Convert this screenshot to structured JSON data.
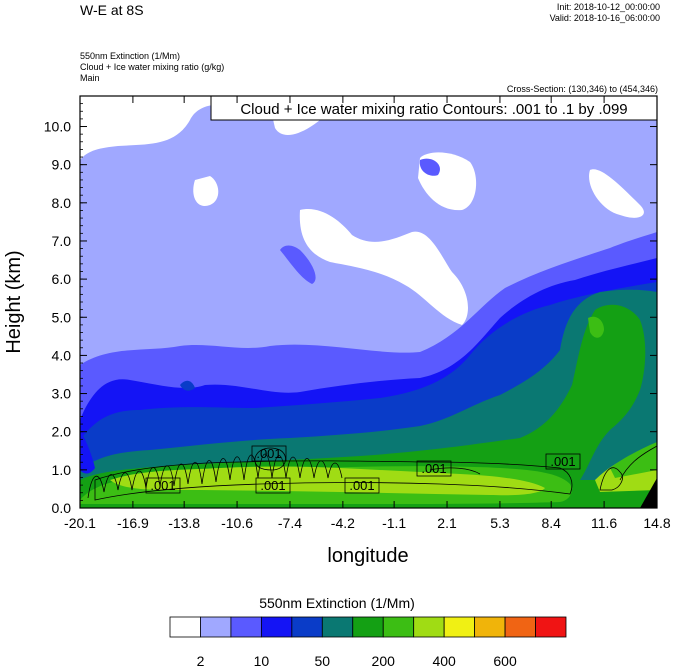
{
  "header": {
    "title": "W-E at 8S",
    "init": "Init: 2018-10-12_00:00:00",
    "valid": "Valid: 2018-10-16_06:00:00",
    "variable_1": "550nm Extinction   (1/Mm)",
    "variable_2": "Cloud + Ice water mixing ratio   (g/kg)",
    "variable_3": "Main",
    "cross_section": "Cross-Section: (130,346) to (454,346)",
    "contour_note": "Cloud + Ice water mixing ratio Contours: .001 to .1 by .099"
  },
  "chart_data": {
    "type": "heatmap",
    "title": "W-E at 8S",
    "xlabel": "longitude",
    "ylabel": "Height (km)",
    "xlim": [
      -20.1,
      14.8
    ],
    "ylim": [
      0.0,
      10.8
    ],
    "x_ticks": [
      "-20.1",
      "-16.9",
      "-13.8",
      "-10.6",
      "-7.4",
      "-4.2",
      "-1.1",
      "2.1",
      "5.3",
      "8.4",
      "11.6",
      "14.8"
    ],
    "y_ticks": [
      "0.0",
      "1.0",
      "2.0",
      "3.0",
      "4.0",
      "5.0",
      "6.0",
      "7.0",
      "8.0",
      "9.0",
      "10.0"
    ],
    "colorbar": {
      "title": "550nm Extinction  (1/Mm)",
      "colors": [
        "#ffffff",
        "#a0a8ff",
        "#5a5aff",
        "#1414f5",
        "#0a3cc8",
        "#0a7872",
        "#14a014",
        "#3cbe14",
        "#a0dc14",
        "#f0f014",
        "#f0b40a",
        "#f06414",
        "#f01414"
      ],
      "labels": [
        "2",
        "10",
        "50",
        "200",
        "400",
        "600"
      ]
    },
    "contour": {
      "variable": "Cloud + Ice water mixing ratio",
      "range": ".001 to .1 by .099",
      "labels": [
        ".001",
        ".001",
        ".001",
        ".001",
        ".001",
        ".001"
      ]
    }
  }
}
